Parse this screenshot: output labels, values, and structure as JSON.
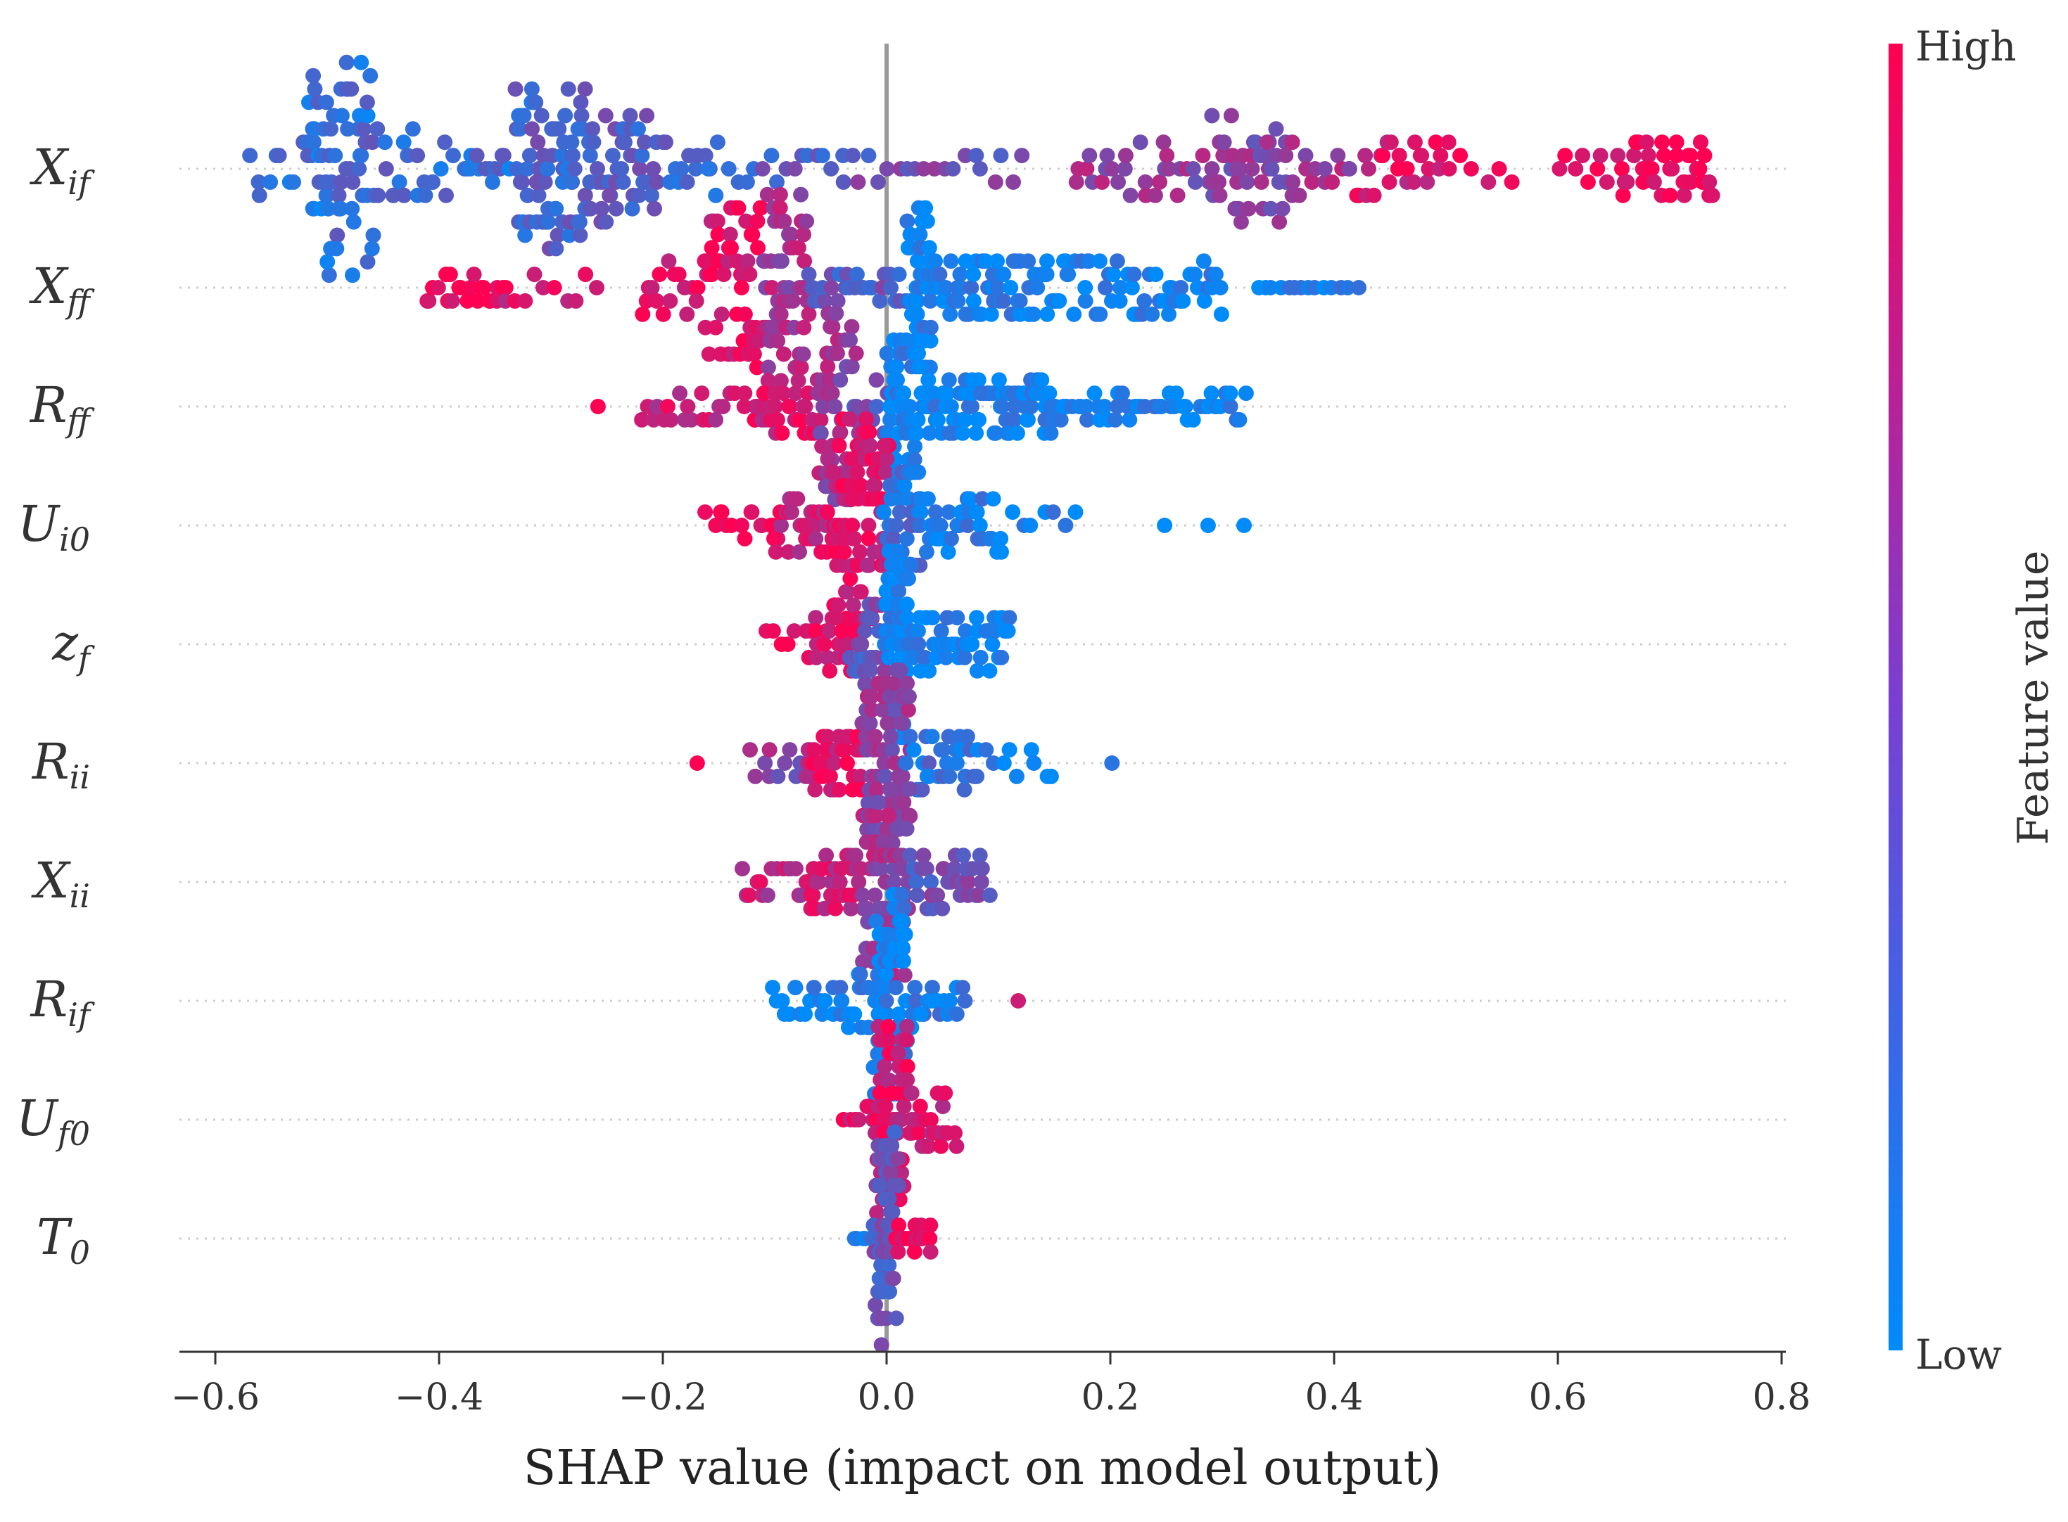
{
  "chart_data": {
    "type": "scatter",
    "subtype": "shap-beeswarm",
    "xlabel": "SHAP value (impact on model output)",
    "xlim": [
      -0.66,
      0.8
    ],
    "xticks": [
      "−0.6",
      "−0.4",
      "−0.2",
      "0.0",
      "0.2",
      "0.4",
      "0.6",
      "0.8"
    ],
    "xtick_values": [
      -0.6,
      -0.4,
      -0.2,
      0.0,
      0.2,
      0.4,
      0.6,
      0.8
    ],
    "zero_line": true,
    "colorbar": {
      "label": "Feature value",
      "high": "High",
      "low": "Low",
      "low_color": "#008bfb",
      "high_color": "#ff0052"
    },
    "features": [
      {
        "name": "Xif",
        "base": "X",
        "sub": "if",
        "clusters": [
          [
            -0.57,
            -0.53,
            8,
            0.2,
            3
          ],
          [
            -0.52,
            -0.46,
            70,
            0.2,
            9
          ],
          [
            -0.46,
            -0.39,
            22,
            0.25,
            4
          ],
          [
            -0.38,
            -0.33,
            16,
            0.2,
            2
          ],
          [
            -0.33,
            -0.27,
            70,
            0.3,
            7
          ],
          [
            -0.27,
            -0.21,
            45,
            0.3,
            5
          ],
          [
            -0.21,
            -0.15,
            18,
            0.3,
            3
          ],
          [
            -0.14,
            -0.04,
            15,
            0.35,
            2
          ],
          [
            -0.04,
            0.12,
            20,
            0.42,
            2
          ],
          [
            0.17,
            0.25,
            20,
            0.6,
            3
          ],
          [
            0.25,
            0.29,
            10,
            0.55,
            3
          ],
          [
            0.29,
            0.36,
            45,
            0.55,
            5
          ],
          [
            0.36,
            0.42,
            15,
            0.6,
            3
          ],
          [
            0.42,
            0.5,
            25,
            0.85,
            3
          ],
          [
            0.5,
            0.56,
            6,
            0.9,
            2
          ],
          [
            0.6,
            0.66,
            10,
            0.95,
            2
          ],
          [
            0.66,
            0.74,
            35,
            0.97,
            3
          ]
        ]
      },
      {
        "name": "Xff",
        "base": "X",
        "sub": "ff",
        "clusters": [
          [
            -0.41,
            -0.34,
            22,
            0.97,
            2
          ],
          [
            -0.34,
            -0.26,
            10,
            0.85,
            2
          ],
          [
            -0.22,
            -0.16,
            18,
            0.85,
            3
          ],
          [
            -0.16,
            -0.11,
            55,
            0.9,
            7
          ],
          [
            -0.11,
            -0.07,
            60,
            0.65,
            8
          ],
          [
            -0.07,
            0.02,
            30,
            0.35,
            2
          ],
          [
            0.02,
            0.04,
            45,
            0.05,
            7
          ],
          [
            0.04,
            0.15,
            60,
            0.06,
            3
          ],
          [
            0.15,
            0.3,
            55,
            0.05,
            3
          ],
          [
            0.33,
            0.42,
            14,
            0.04,
            1
          ]
        ]
      },
      {
        "name": "Rff",
        "base": "R",
        "sub": "ff",
        "clusters": [
          [
            -0.26,
            -0.26,
            1,
            0.97,
            1
          ],
          [
            -0.22,
            -0.12,
            22,
            0.8,
            2
          ],
          [
            -0.12,
            -0.06,
            30,
            0.85,
            3
          ],
          [
            -0.06,
            -0.03,
            55,
            0.6,
            8
          ],
          [
            -0.03,
            0.0,
            10,
            0.4,
            3
          ],
          [
            0.0,
            0.03,
            50,
            0.05,
            6
          ],
          [
            0.03,
            0.15,
            90,
            0.05,
            3
          ],
          [
            0.15,
            0.32,
            50,
            0.05,
            2
          ]
        ]
      },
      {
        "name": "Ui0",
        "base": "U",
        "sub": "i0",
        "clusters": [
          [
            -0.16,
            -0.1,
            14,
            0.93,
            2
          ],
          [
            -0.1,
            -0.05,
            30,
            0.8,
            3
          ],
          [
            -0.05,
            0.0,
            110,
            0.85,
            9
          ],
          [
            0.0,
            0.03,
            40,
            0.2,
            5
          ],
          [
            0.03,
            0.1,
            40,
            0.08,
            3
          ],
          [
            0.1,
            0.17,
            8,
            0.05,
            2
          ],
          [
            0.25,
            0.32,
            3,
            0.05,
            1
          ]
        ]
      },
      {
        "name": "zf",
        "base": "z",
        "sub": "f",
        "clusters": [
          [
            -0.11,
            -0.08,
            5,
            0.95,
            2
          ],
          [
            -0.07,
            -0.03,
            25,
            0.85,
            3
          ],
          [
            -0.03,
            0.0,
            30,
            0.4,
            4
          ],
          [
            0.0,
            0.02,
            70,
            0.05,
            8
          ],
          [
            0.02,
            0.11,
            50,
            0.04,
            3
          ]
        ]
      },
      {
        "name": "Rii",
        "base": "R",
        "sub": "ii",
        "clusters": [
          [
            -0.17,
            -0.17,
            1,
            0.97,
            1
          ],
          [
            -0.12,
            -0.07,
            12,
            0.55,
            2
          ],
          [
            -0.07,
            -0.02,
            40,
            0.85,
            3
          ],
          [
            -0.02,
            0.02,
            75,
            0.55,
            8
          ],
          [
            0.02,
            0.08,
            30,
            0.2,
            3
          ],
          [
            0.08,
            0.15,
            10,
            0.05,
            2
          ],
          [
            0.2,
            0.2,
            1,
            0.05,
            1
          ]
        ]
      },
      {
        "name": "Xii",
        "base": "X",
        "sub": "ii",
        "clusters": [
          [
            -0.13,
            -0.07,
            16,
            0.75,
            2
          ],
          [
            -0.07,
            -0.02,
            40,
            0.8,
            3
          ],
          [
            -0.02,
            0.02,
            85,
            0.6,
            8
          ],
          [
            0.02,
            0.09,
            35,
            0.4,
            3
          ]
        ]
      },
      {
        "name": "Rif",
        "base": "R",
        "sub": "if",
        "clusters": [
          [
            -0.1,
            -0.04,
            18,
            0.05,
            2
          ],
          [
            -0.04,
            0.0,
            25,
            0.08,
            3
          ],
          [
            -0.01,
            0.02,
            70,
            0.07,
            9
          ],
          [
            0.02,
            0.07,
            20,
            0.1,
            2
          ],
          [
            0.12,
            0.13,
            1,
            0.97,
            1
          ]
        ]
      },
      {
        "name": "Uf0",
        "base": "U",
        "sub": "f0",
        "clusters": [
          [
            -0.04,
            -0.01,
            10,
            0.9,
            2
          ],
          [
            -0.01,
            0.02,
            70,
            0.85,
            8
          ],
          [
            0.02,
            0.06,
            25,
            0.8,
            3
          ]
        ]
      },
      {
        "name": "T0",
        "base": "T",
        "sub": "0",
        "clusters": [
          [
            -0.03,
            -0.01,
            6,
            0.1,
            2
          ],
          [
            -0.01,
            0.01,
            60,
            0.4,
            9
          ],
          [
            0.01,
            0.04,
            18,
            0.95,
            2
          ]
        ]
      }
    ],
    "clusters_format": [
      "x_start",
      "x_end",
      "count",
      "mean_feature_value_0to1",
      "vertical_spread_rows"
    ]
  }
}
